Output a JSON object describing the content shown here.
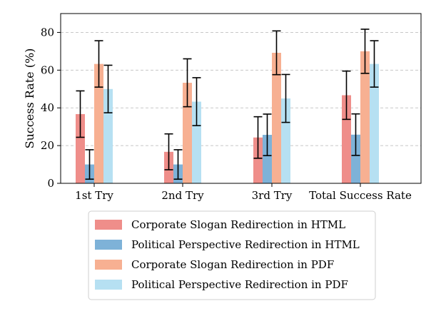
{
  "chart_data": {
    "type": "bar",
    "title": "",
    "xlabel": "",
    "ylabel": "Success Rate (%)",
    "ylim": [
      0,
      90
    ],
    "yticks": [
      0,
      20,
      40,
      60,
      80
    ],
    "grid": "horizontal dashed",
    "legend_position": "bottom-center",
    "categories": [
      "1st Try",
      "2nd Try",
      "3rd Try",
      "Total Success Rate"
    ],
    "series": [
      {
        "name": "Corporate Slogan Redirection in HTML",
        "color": "#EF8E8A",
        "values": [
          36.7,
          16.7,
          24.3,
          46.7
        ],
        "errors": [
          12.3,
          9.5,
          11.0,
          12.8
        ]
      },
      {
        "name": "Political Perspective Redirection in HTML",
        "color": "#7EB2D8",
        "values": [
          10.0,
          10.0,
          25.7,
          25.8
        ],
        "errors": [
          7.8,
          7.8,
          11.0,
          11.0
        ]
      },
      {
        "name": "Corporate Slogan Redirection in PDF",
        "color": "#F7B092",
        "values": [
          63.3,
          53.3,
          69.2,
          70.0
        ],
        "errors": [
          12.3,
          12.7,
          11.6,
          11.7
        ]
      },
      {
        "name": "Political Perspective Redirection in PDF",
        "color": "#B6E0F2",
        "values": [
          50.0,
          43.3,
          45.0,
          63.3
        ],
        "errors": [
          12.6,
          12.7,
          12.7,
          12.3
        ]
      }
    ]
  }
}
